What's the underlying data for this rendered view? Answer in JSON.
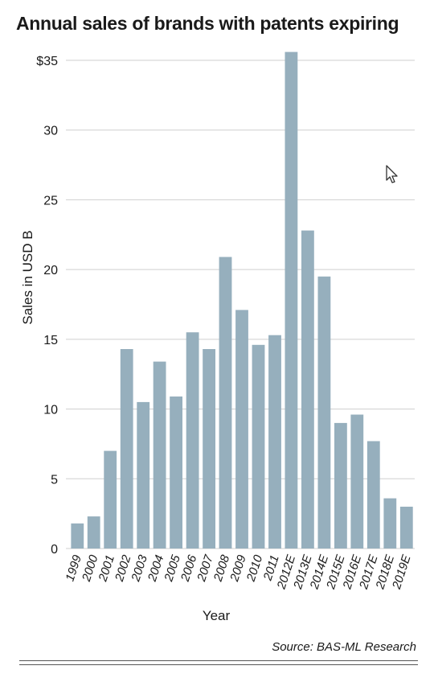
{
  "chart_data": {
    "type": "bar",
    "title": "Annual sales of brands with patents expiring",
    "xlabel": "Year",
    "ylabel": "Sales  in USD B",
    "ylim": [
      0,
      35
    ],
    "yticks": [
      "0",
      "5",
      "10",
      "15",
      "20",
      "25",
      "30",
      "$35"
    ],
    "grid": true,
    "categories": [
      "1999",
      "2000",
      "2001",
      "2002",
      "2003",
      "2004",
      "2005",
      "2006",
      "2007",
      "2008",
      "2009",
      "2010",
      "2011",
      "2012E",
      "2013E",
      "2014E",
      "2015E",
      "2016E",
      "2017E",
      "2018E",
      "2019E"
    ],
    "values": [
      1.8,
      2.3,
      7.0,
      14.3,
      10.5,
      13.4,
      10.9,
      15.5,
      14.3,
      20.9,
      17.1,
      14.6,
      15.3,
      35.6,
      22.8,
      19.5,
      9.0,
      9.6,
      7.7,
      3.6,
      3.0
    ],
    "bar_color": "#96afbd"
  },
  "source": "Source: BAS-ML Research"
}
